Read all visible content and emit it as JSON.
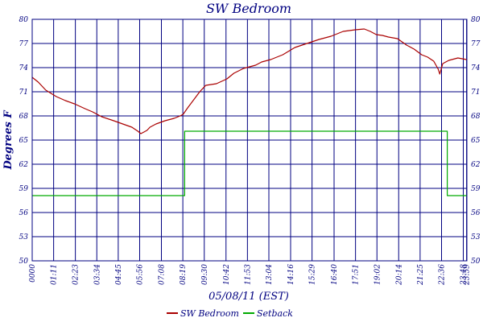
{
  "chart_data": {
    "type": "line",
    "title": "SW Bedroom",
    "xlabel": "05/08/11 (EST)",
    "ylabel": "Degrees F",
    "xlim": [
      0,
      1440
    ],
    "ylim": [
      50,
      80
    ],
    "grid": true,
    "legend_placement": "bottom",
    "x_ticks": [
      {
        "t": 0,
        "label": "0000"
      },
      {
        "t": 71,
        "label": "01:11"
      },
      {
        "t": 143,
        "label": "02:23"
      },
      {
        "t": 214,
        "label": "03:34"
      },
      {
        "t": 285,
        "label": "04:45"
      },
      {
        "t": 356,
        "label": "05:56"
      },
      {
        "t": 428,
        "label": "07:08"
      },
      {
        "t": 499,
        "label": "08:19"
      },
      {
        "t": 570,
        "label": "09:30"
      },
      {
        "t": 642,
        "label": "10:42"
      },
      {
        "t": 713,
        "label": "11:53"
      },
      {
        "t": 784,
        "label": "13:04"
      },
      {
        "t": 856,
        "label": "14:16"
      },
      {
        "t": 927,
        "label": "15:29"
      },
      {
        "t": 1000,
        "label": "16:40"
      },
      {
        "t": 1071,
        "label": "17:51"
      },
      {
        "t": 1142,
        "label": "19:02"
      },
      {
        "t": 1214,
        "label": "20:14"
      },
      {
        "t": 1285,
        "label": "21:25"
      },
      {
        "t": 1356,
        "label": "22:36"
      },
      {
        "t": 1428,
        "label": "23:48"
      },
      {
        "t": 1439,
        "label": "23:59"
      }
    ],
    "y_ticks": [
      {
        "v": 50,
        "label": "50"
      },
      {
        "v": 53,
        "label": "53"
      },
      {
        "v": 56,
        "label": "56"
      },
      {
        "v": 59,
        "label": "59"
      },
      {
        "v": 62,
        "label": "62"
      },
      {
        "v": 65,
        "label": "65"
      },
      {
        "v": 68,
        "label": "68"
      },
      {
        "v": 71,
        "label": "71"
      },
      {
        "v": 74,
        "label": "74"
      },
      {
        "v": 77,
        "label": "77"
      },
      {
        "v": 80,
        "label": "80"
      }
    ],
    "series": [
      {
        "name": "SW Bedroom",
        "color": "#aa0000",
        "points": [
          [
            0,
            72.8
          ],
          [
            20,
            72.2
          ],
          [
            45,
            71.2
          ],
          [
            80,
            70.4
          ],
          [
            110,
            69.9
          ],
          [
            140,
            69.5
          ],
          [
            175,
            68.9
          ],
          [
            200,
            68.5
          ],
          [
            230,
            67.9
          ],
          [
            270,
            67.4
          ],
          [
            300,
            67.0
          ],
          [
            330,
            66.6
          ],
          [
            350,
            66.1
          ],
          [
            360,
            65.8
          ],
          [
            370,
            66.0
          ],
          [
            380,
            66.2
          ],
          [
            390,
            66.6
          ],
          [
            410,
            67.0
          ],
          [
            440,
            67.4
          ],
          [
            470,
            67.7
          ],
          [
            490,
            68.0
          ],
          [
            500,
            68.2
          ],
          [
            515,
            69.0
          ],
          [
            535,
            70.0
          ],
          [
            555,
            71.0
          ],
          [
            575,
            71.8
          ],
          [
            610,
            72.0
          ],
          [
            645,
            72.6
          ],
          [
            668,
            73.3
          ],
          [
            700,
            73.9
          ],
          [
            740,
            74.3
          ],
          [
            760,
            74.7
          ],
          [
            790,
            75.0
          ],
          [
            830,
            75.6
          ],
          [
            870,
            76.5
          ],
          [
            910,
            77.0
          ],
          [
            950,
            77.5
          ],
          [
            990,
            77.9
          ],
          [
            1030,
            78.5
          ],
          [
            1070,
            78.7
          ],
          [
            1100,
            78.8
          ],
          [
            1120,
            78.5
          ],
          [
            1140,
            78.1
          ],
          [
            1160,
            78.0
          ],
          [
            1180,
            77.8
          ],
          [
            1210,
            77.6
          ],
          [
            1240,
            76.8
          ],
          [
            1265,
            76.3
          ],
          [
            1290,
            75.6
          ],
          [
            1310,
            75.3
          ],
          [
            1330,
            74.8
          ],
          [
            1345,
            73.8
          ],
          [
            1350,
            73.2
          ],
          [
            1360,
            74.5
          ],
          [
            1380,
            74.9
          ],
          [
            1410,
            75.2
          ],
          [
            1439,
            75.0
          ]
        ]
      },
      {
        "name": "Setback",
        "color": "#00aa00",
        "points": [
          [
            0,
            58.1
          ],
          [
            505,
            58.1
          ],
          [
            505,
            66.1
          ],
          [
            1375,
            66.1
          ],
          [
            1375,
            58.1
          ],
          [
            1439,
            58.1
          ]
        ]
      }
    ]
  }
}
